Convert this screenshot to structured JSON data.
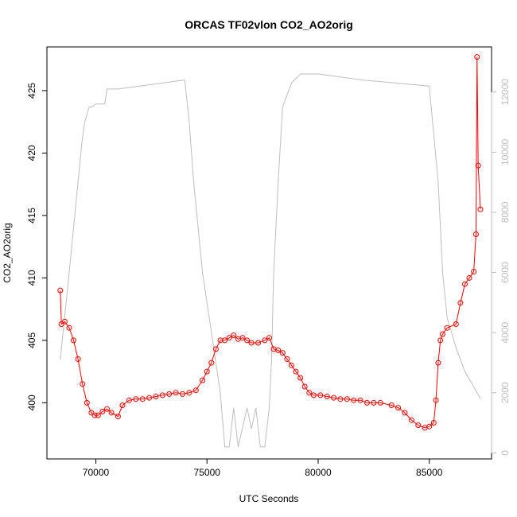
{
  "chart_data": {
    "type": "scatter",
    "title": "ORCAS TF02vlon CO2_AO2orig",
    "xlabel": "UTC Seconds",
    "ylabel": "CO2_AO2orig",
    "xlim": [
      67800,
      87800
    ],
    "ylim": [
      395.5,
      428.5
    ],
    "y2lim": [
      -200,
      13500
    ],
    "x_ticks": [
      70000,
      75000,
      80000,
      85000
    ],
    "y_ticks": [
      400,
      405,
      410,
      415,
      420,
      425
    ],
    "y2_ticks": [
      0,
      2000,
      4000,
      6000,
      8000,
      10000,
      12000
    ],
    "grid": false,
    "legend": "none",
    "colors": {
      "co2": "#ff0000",
      "altitude": "#bebebe",
      "axis": "#000000",
      "axis2": "#bebebe"
    },
    "series": [
      {
        "role": "co2-points",
        "marker": "open-circle",
        "x": [
          68400,
          68450,
          68600,
          68800,
          69000,
          69200,
          69400,
          69600,
          69800,
          69950,
          70100,
          70300,
          70500,
          70700,
          71000,
          71200,
          71500,
          71800,
          72100,
          72400,
          72700,
          73000,
          73300,
          73600,
          73900,
          74200,
          74500,
          74800,
          75000,
          75200,
          75400,
          75600,
          75800,
          76000,
          76200,
          76400,
          76600,
          76800,
          77000,
          77300,
          77600,
          77800,
          78000,
          78200,
          78400,
          78600,
          78800,
          79000,
          79200,
          79400,
          79600,
          79800,
          80100,
          80400,
          80700,
          81000,
          81300,
          81600,
          81900,
          82200,
          82500,
          82800,
          83300,
          83600,
          83900,
          84200,
          84500,
          84800,
          85000,
          85200,
          85300,
          85400,
          85500,
          85600,
          85800,
          86200,
          86400,
          86600,
          86800,
          87000,
          87100,
          87150,
          87200,
          87300
        ],
        "y": [
          409.0,
          406.3,
          406.5,
          406.0,
          405.0,
          403.5,
          401.5,
          400.0,
          399.2,
          399.0,
          399.0,
          399.3,
          399.5,
          399.2,
          398.9,
          399.8,
          400.2,
          400.3,
          400.3,
          400.4,
          400.5,
          400.6,
          400.7,
          400.8,
          400.7,
          400.8,
          401.0,
          401.8,
          402.5,
          403.2,
          404.3,
          405.0,
          405.0,
          405.2,
          405.4,
          405.1,
          405.2,
          405.0,
          404.8,
          404.8,
          405.0,
          405.2,
          404.3,
          404.2,
          404.0,
          403.5,
          403.0,
          402.5,
          402.0,
          401.3,
          400.8,
          400.6,
          400.6,
          400.5,
          400.4,
          400.3,
          400.3,
          400.2,
          400.2,
          400.0,
          400.0,
          400.0,
          399.8,
          399.6,
          399.2,
          398.6,
          398.2,
          398.0,
          398.1,
          398.4,
          400.2,
          403.2,
          405.0,
          405.5,
          406.0,
          406.3,
          408.0,
          409.5,
          410.0,
          410.5,
          413.5,
          427.7,
          419.0,
          415.5
        ]
      },
      {
        "role": "altitude-line",
        "x": [
          68400,
          68800,
          69200,
          69400,
          69500,
          69700,
          69800,
          70000,
          70400,
          70500,
          71000,
          74000,
          74200,
          74400,
          74800,
          75200,
          75600,
          75800,
          76000,
          76200,
          76400,
          76800,
          77000,
          77200,
          77400,
          77600,
          77800,
          77900,
          78000,
          78200,
          78400,
          78800,
          79200,
          79600,
          80000,
          82000,
          85000,
          85400,
          85600,
          85800,
          86200,
          86600,
          87000,
          87300
        ],
        "y": [
          3100,
          6000,
          9000,
          10500,
          11000,
          11500,
          11500,
          11600,
          11600,
          12100,
          12100,
          12400,
          11000,
          9000,
          6000,
          4000,
          2000,
          200,
          200,
          1500,
          200,
          1500,
          800,
          1500,
          200,
          200,
          1500,
          3000,
          6000,
          9000,
          11500,
          12300,
          12600,
          12600,
          12600,
          12400,
          12200,
          9000,
          6000,
          4500,
          3500,
          2700,
          2200,
          1800
        ]
      }
    ]
  }
}
